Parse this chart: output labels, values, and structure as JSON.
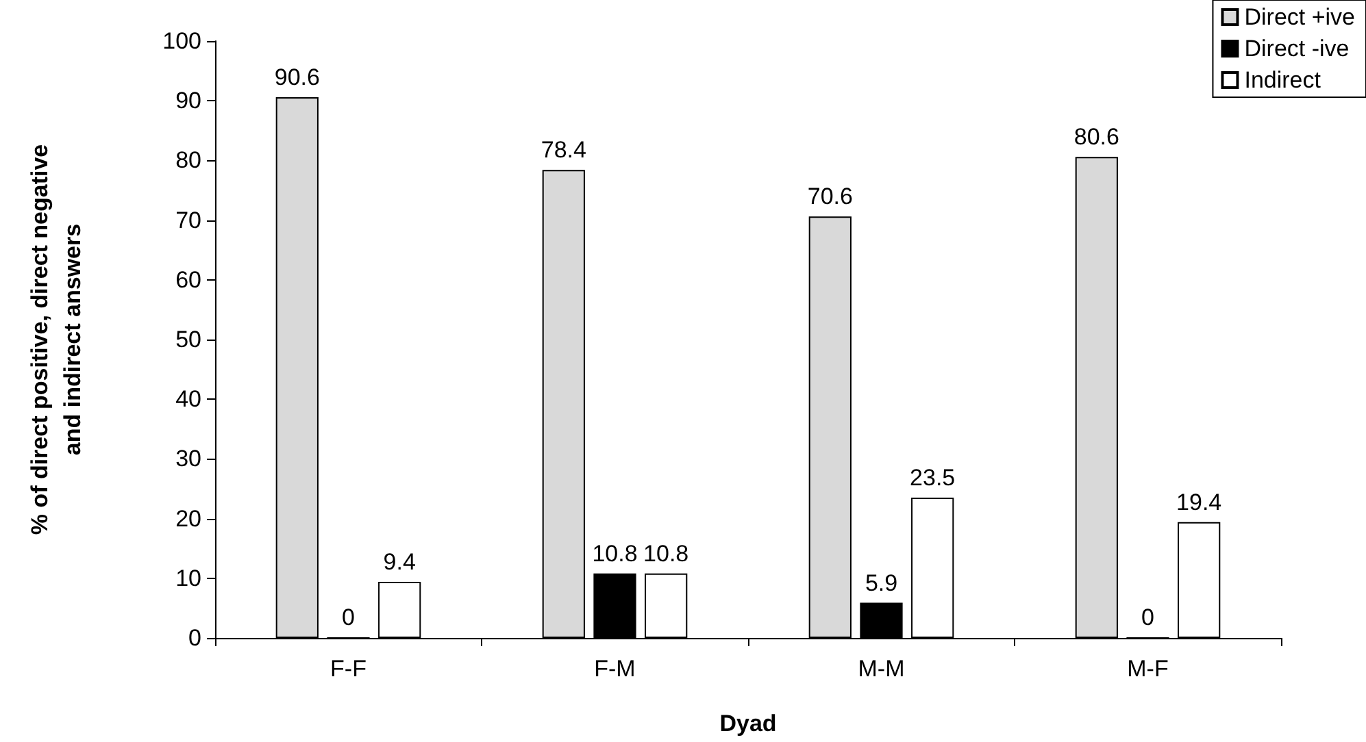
{
  "chart_data": {
    "type": "bar",
    "xlabel": "Dyad",
    "ylabel": "% of direct positive, direct negative\nand indirect answers",
    "categories": [
      "F-F",
      "F-M",
      "M-M",
      "M-F"
    ],
    "series": [
      {
        "name": "Direct +ive",
        "color": "#d9d9d9",
        "values": [
          90.6,
          78.4,
          70.6,
          80.6
        ]
      },
      {
        "name": "Direct -ive",
        "color": "#000000",
        "values": [
          0,
          10.8,
          5.9,
          0
        ]
      },
      {
        "name": "Indirect",
        "color": "#ffffff",
        "values": [
          9.4,
          10.8,
          23.5,
          19.4
        ]
      }
    ],
    "ylim": [
      0,
      100
    ],
    "yticks": [
      0,
      10,
      20,
      30,
      40,
      50,
      60,
      70,
      80,
      90,
      100
    ],
    "data_labels": true,
    "grid": false,
    "legend": "top right"
  }
}
